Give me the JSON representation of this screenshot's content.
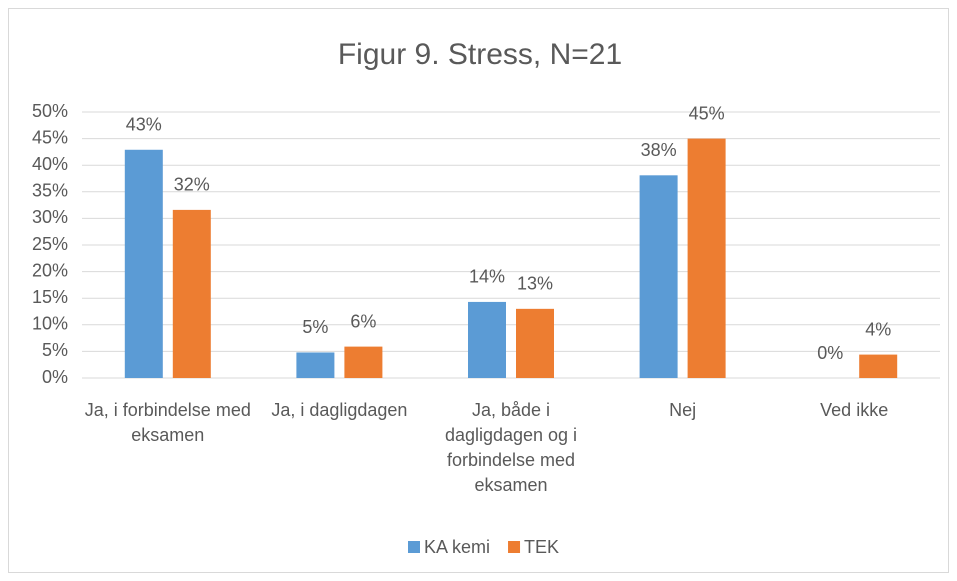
{
  "chart_data": {
    "type": "bar",
    "title": "Figur 9. Stress, N=21",
    "categories": [
      "Ja, i forbindelse med eksamen",
      "Ja, i dagligdagen",
      "Ja, både i dagligdagen og i forbindelse med eksamen",
      "Nej",
      "Ved ikke"
    ],
    "series": [
      {
        "name": "KA kemi",
        "color": "#5b9bd5",
        "values": [
          42.9,
          4.8,
          14.3,
          38.1,
          0
        ],
        "value_labels": [
          "43%",
          "5%",
          "14%",
          "38%",
          "0%"
        ]
      },
      {
        "name": "TEK",
        "color": "#ed7d31",
        "values": [
          31.6,
          5.9,
          13.0,
          45.0,
          4.4
        ],
        "value_labels": [
          "32%",
          "6%",
          "13%",
          "45%",
          "4%"
        ]
      }
    ],
    "ylim": [
      0,
      50
    ],
    "yticks": [
      {
        "value": 0,
        "label": "0%"
      },
      {
        "value": 5,
        "label": "5%"
      },
      {
        "value": 10,
        "label": "10%"
      },
      {
        "value": 15,
        "label": "15%"
      },
      {
        "value": 20,
        "label": "20%"
      },
      {
        "value": 25,
        "label": "25%"
      },
      {
        "value": 30,
        "label": "30%"
      },
      {
        "value": 35,
        "label": "35%"
      },
      {
        "value": 40,
        "label": "40%"
      },
      {
        "value": 45,
        "label": "45%"
      },
      {
        "value": 50,
        "label": "50%"
      }
    ],
    "grid": true,
    "legend": "bottom"
  }
}
